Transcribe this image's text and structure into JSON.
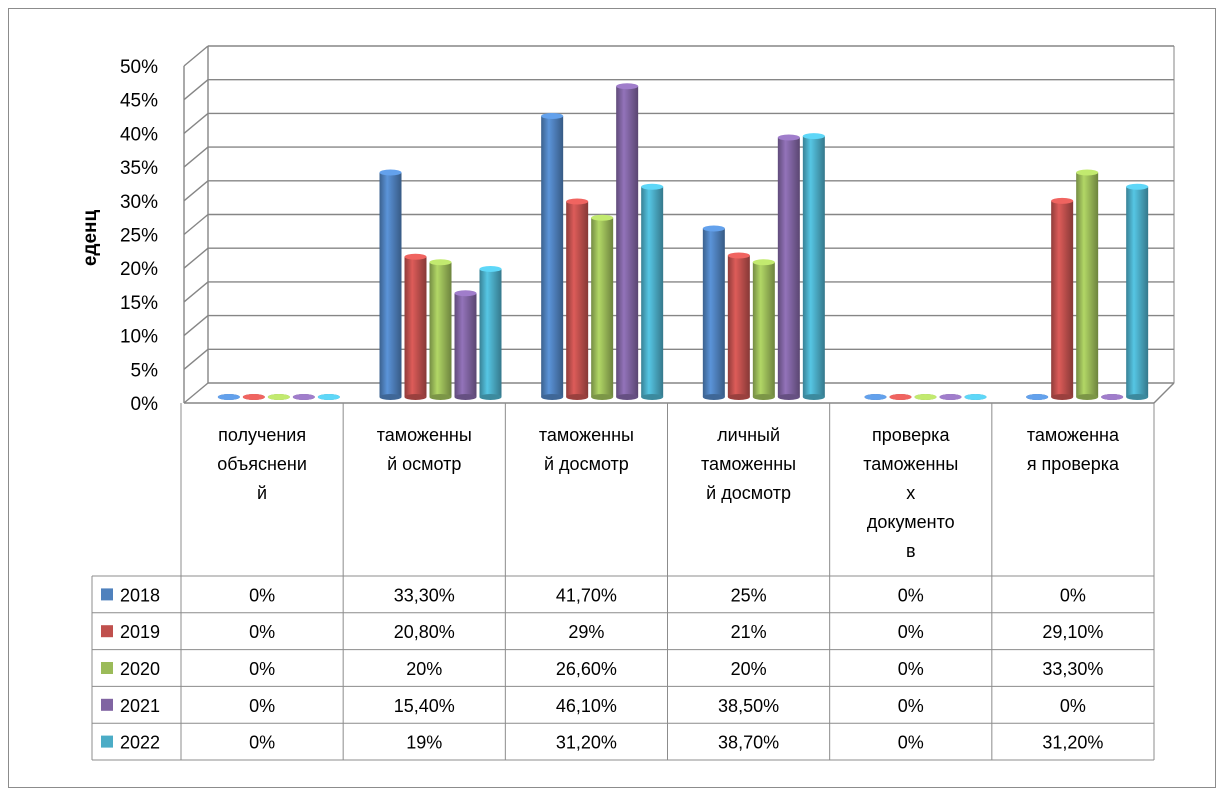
{
  "chart_data": {
    "type": "bar",
    "title": "",
    "xlabel": "",
    "ylabel": "еденц",
    "ylim": [
      0,
      50
    ],
    "y_tick_labels": [
      "0%",
      "5%",
      "10%",
      "15%",
      "20%",
      "25%",
      "30%",
      "35%",
      "40%",
      "45%",
      "50%"
    ],
    "grid": true,
    "legend": "data-table-left",
    "categories": [
      "получения объяснений",
      "таможенный осмотр",
      "таможенный досмотр",
      "личный таможенный досмотр",
      "проверка таможенных документов",
      "таможенная проверка"
    ],
    "category_label_lines": [
      [
        "получения",
        "объяснени",
        "й"
      ],
      [
        "таможенны",
        "й осмотр"
      ],
      [
        "таможенны",
        "й досмотр"
      ],
      [
        "личный",
        "таможенны",
        "й досмотр"
      ],
      [
        "проверка",
        "таможенны",
        "х",
        "документо",
        "в"
      ],
      [
        "таможенна",
        "я проверка"
      ]
    ],
    "series": [
      {
        "name": "2018",
        "color": "#4f81bd",
        "values": [
          0,
          33.3,
          41.7,
          25,
          0,
          0
        ],
        "labels": [
          "0%",
          "33,30%",
          "41,70%",
          "25%",
          "0%",
          "0%"
        ]
      },
      {
        "name": "2019",
        "color": "#c0504d",
        "values": [
          0,
          20.8,
          29,
          21,
          0,
          29.1
        ],
        "labels": [
          "0%",
          "20,80%",
          "29%",
          "21%",
          "0%",
          "29,10%"
        ]
      },
      {
        "name": "2020",
        "color": "#9bbb59",
        "values": [
          0,
          20,
          26.6,
          20,
          0,
          33.3
        ],
        "labels": [
          "0%",
          "20%",
          "26,60%",
          "20%",
          "0%",
          "33,30%"
        ]
      },
      {
        "name": "2021",
        "color": "#8064a2",
        "values": [
          0,
          15.4,
          46.1,
          38.5,
          0,
          0
        ],
        "labels": [
          "0%",
          "15,40%",
          "46,10%",
          "38,50%",
          "0%",
          "0%"
        ]
      },
      {
        "name": "2022",
        "color": "#4bacc6",
        "values": [
          0,
          19,
          31.2,
          38.7,
          0,
          31.2
        ],
        "labels": [
          "0%",
          "19%",
          "31,20%",
          "38,70%",
          "0%",
          "31,20%"
        ]
      }
    ]
  }
}
